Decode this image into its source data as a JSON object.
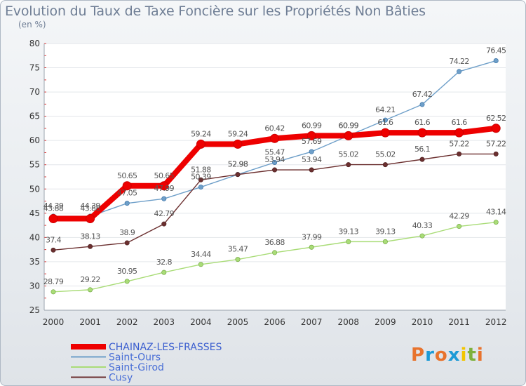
{
  "chart_data": {
    "type": "line",
    "title": "Evolution du Taux de Taxe Foncière sur les Propriétés Non Bâties",
    "subtitle": "(en %)",
    "x": [
      "2000",
      "2001",
      "2002",
      "2003",
      "2004",
      "2005",
      "2006",
      "2007",
      "2008",
      "2009",
      "2010",
      "2011",
      "2012"
    ],
    "ylim": [
      25,
      80
    ],
    "yticks": [
      25,
      30,
      35,
      40,
      45,
      50,
      55,
      60,
      65,
      70,
      75,
      80
    ],
    "series": [
      {
        "name": "CHAINAZ-LES-FRASSES",
        "color": "#ee0000",
        "values": [
          43.88,
          43.88,
          50.65,
          50.65,
          59.24,
          59.24,
          60.42,
          60.99,
          60.99,
          61.6,
          61.6,
          61.6,
          62.52
        ]
      },
      {
        "name": "Saint-Ours",
        "color": "#6e9fc9",
        "values": [
          44.39,
          44.39,
          47.05,
          47.99,
          50.39,
          52.98,
          55.47,
          57.69,
          60.99,
          64.21,
          67.42,
          74.22,
          76.45
        ]
      },
      {
        "name": "Saint-Girod",
        "color": "#a9dc77",
        "values": [
          28.79,
          29.22,
          30.95,
          32.8,
          34.44,
          35.47,
          36.88,
          37.99,
          39.13,
          39.13,
          40.33,
          42.29,
          43.14
        ]
      },
      {
        "name": "Cusy",
        "color": "#6b2f2f",
        "values": [
          37.4,
          38.13,
          38.9,
          42.79,
          51.88,
          52.98,
          53.94,
          53.94,
          55.02,
          55.02,
          56.1,
          57.22,
          57.22
        ]
      }
    ]
  },
  "labels": {
    "CHAINAZ-LES-FRASSES": [
      "43.88",
      "43.88",
      "50.65",
      "50.65",
      "59.24",
      "59.24",
      "60.42",
      "60.99",
      "60.99",
      "61.6",
      "61.6",
      "61.6",
      "62.52"
    ],
    "Saint-Ours": [
      "44.39",
      "44.39",
      "47.05",
      "47.99",
      "50.39",
      "52.98",
      "55.47",
      "57.69",
      "60.99",
      "64.21",
      "67.42",
      "74.22",
      "76.45"
    ],
    "Saint-Girod": [
      "28.79",
      "29.22",
      "30.95",
      "32.8",
      "34.44",
      "35.47",
      "36.88",
      "37.99",
      "39.13",
      "39.13",
      "40.33",
      "42.29",
      "43.14"
    ],
    "Cusy": [
      "37.4",
      "38.13",
      "38.9",
      "42.79",
      "51.88",
      "52.98",
      "53.94",
      "53.94",
      "55.02",
      "55.02",
      "56.1",
      "57.22",
      "57.22"
    ]
  },
  "brand": {
    "text": "Proxiti",
    "letters": [
      "P",
      "r",
      "o",
      "x",
      "i",
      "t",
      "i"
    ],
    "colors": [
      "#e8732d",
      "#1d9ad6",
      "#e8732d",
      "#1d9ad6",
      "#f2c500",
      "#7db13c",
      "#e8732d"
    ]
  }
}
